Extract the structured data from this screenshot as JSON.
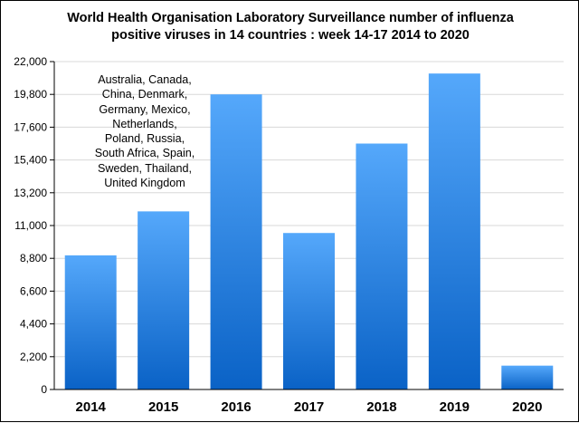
{
  "chart_data": {
    "type": "bar",
    "title_lines": [
      "World Health Organisation Laboratory Surveillance number of influenza",
      "positive viruses in 14 countries : week 14-17 2014 to 2020"
    ],
    "categories": [
      "2014",
      "2015",
      "2016",
      "2017",
      "2018",
      "2019",
      "2020"
    ],
    "values": [
      9000,
      11950,
      19800,
      10500,
      16500,
      21200,
      1600
    ],
    "ylim": [
      0,
      22000
    ],
    "yticks": [
      "0",
      "2,200",
      "4,400",
      "6,600",
      "8,800",
      "11,000",
      "13,200",
      "15,400",
      "17,600",
      "19,800",
      "22,000"
    ],
    "grid": true,
    "colors": {
      "bar_top": "#55a8fb",
      "bar_bottom": "#0a62c6",
      "grid": "#d8d8d8"
    },
    "annotation_lines": [
      "Australia, Canada,",
      "China, Denmark,",
      "Germany, Mexico,",
      "Netherlands,",
      "Poland, Russia,",
      "South Africa, Spain,",
      "Sweden, Thailand,",
      "United Kingdom"
    ]
  }
}
